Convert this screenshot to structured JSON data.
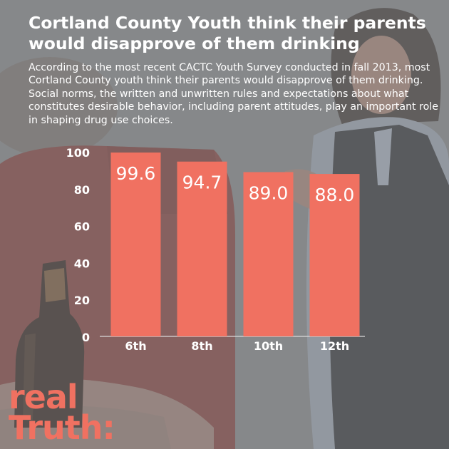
{
  "header": {
    "title": "Cortland County Youth think their parents would disapprove of them drinking",
    "subtitle": "According to the most recent CACTC Youth Survey conducted in fall 2013, most Cortland County youth think their parents would disapprove of them drinking. Social norms, the written and unwritten rules and expectations about what constitutes desirable behavior, including parent attitudes, play an important role in shaping drug use choices."
  },
  "brand": {
    "line1": "real",
    "line2": "Truth:"
  },
  "colors": {
    "bar": "#f07161",
    "brand": "#f07161",
    "text": "#ffffff"
  },
  "chart_data": {
    "type": "bar",
    "categories": [
      "6th",
      "8th",
      "10th",
      "12th"
    ],
    "values": [
      99.6,
      94.7,
      89.0,
      88.0
    ],
    "value_labels": [
      "99.6",
      "94.7",
      "89.0",
      "88.0"
    ],
    "title": "",
    "xlabel": "",
    "ylabel": "",
    "ylim": [
      0,
      100
    ],
    "yticks": [
      0,
      20,
      40,
      60,
      80,
      100
    ],
    "grid": false,
    "legend": "none"
  }
}
